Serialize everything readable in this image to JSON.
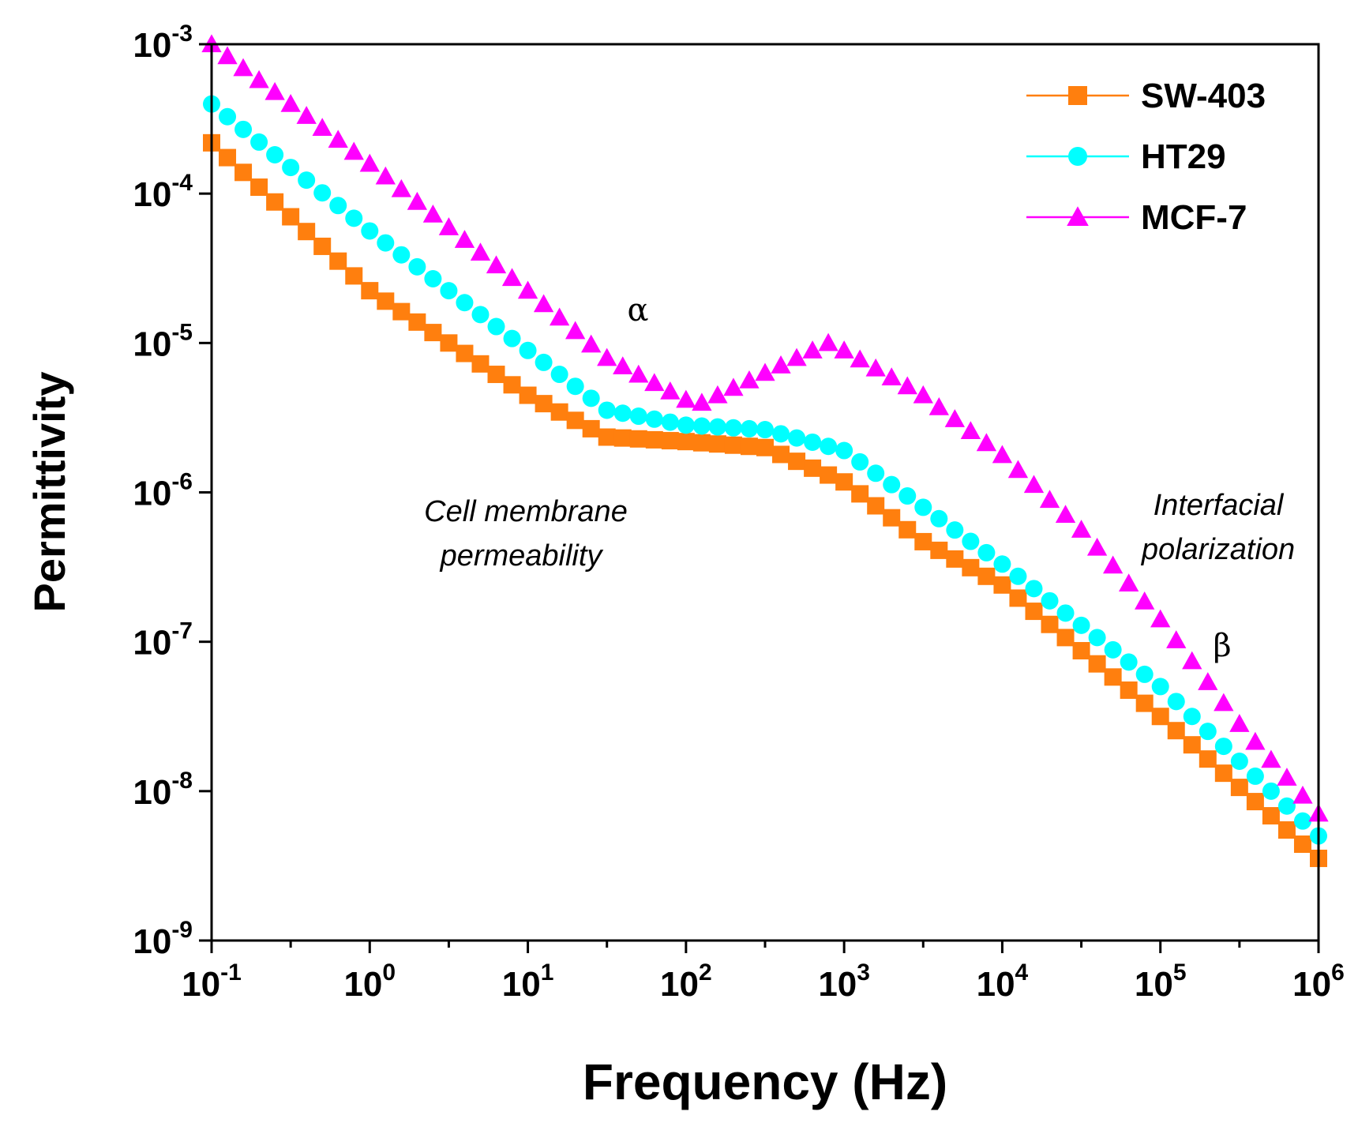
{
  "chart_data": {
    "type": "scatter",
    "title": "",
    "xlabel": "Frequency (Hz)",
    "ylabel": "Permittivity",
    "xscale": "log",
    "yscale": "log",
    "xlim": [
      0.1,
      1000000
    ],
    "ylim": [
      1e-09,
      0.001
    ],
    "x_ticks": [
      {
        "base": "10",
        "exp": "-1"
      },
      {
        "base": "10",
        "exp": "0"
      },
      {
        "base": "10",
        "exp": "1"
      },
      {
        "base": "10",
        "exp": "2"
      },
      {
        "base": "10",
        "exp": "3"
      },
      {
        "base": "10",
        "exp": "4"
      },
      {
        "base": "10",
        "exp": "5"
      },
      {
        "base": "10",
        "exp": "6"
      }
    ],
    "y_ticks": [
      {
        "base": "10",
        "exp": "-9"
      },
      {
        "base": "10",
        "exp": "-8"
      },
      {
        "base": "10",
        "exp": "-7"
      },
      {
        "base": "10",
        "exp": "-6"
      },
      {
        "base": "10",
        "exp": "-5"
      },
      {
        "base": "10",
        "exp": "-4"
      },
      {
        "base": "10",
        "exp": "-3"
      }
    ],
    "legend_position": "top-right",
    "grid": false,
    "series": [
      {
        "name": "SW-403",
        "color": "#FF7F0E",
        "marker": "square",
        "log_x": [
          -1,
          0,
          1,
          1.5,
          2,
          2.5,
          3,
          3.5,
          4,
          5,
          6
        ],
        "log_y": [
          -3.66,
          -4.65,
          -5.35,
          -5.63,
          -5.66,
          -5.7,
          -5.93,
          -6.33,
          -6.62,
          -7.5,
          -8.45
        ]
      },
      {
        "name": "HT29",
        "color": "#00FFFF",
        "marker": "circle",
        "log_x": [
          -1,
          0,
          1,
          1.5,
          2,
          2.5,
          3,
          3.5,
          4,
          5,
          6
        ],
        "log_y": [
          -3.4,
          -4.25,
          -5.05,
          -5.45,
          -5.55,
          -5.58,
          -5.72,
          -6.1,
          -6.48,
          -7.3,
          -8.3
        ]
      },
      {
        "name": "MCF-7",
        "color": "#FF00FF",
        "marker": "triangle",
        "log_x": [
          -1,
          0,
          1,
          1.5,
          2,
          2.1,
          2.5,
          2.9,
          3,
          3.5,
          4,
          4.5,
          5,
          5.5,
          6
        ],
        "log_y": [
          -3.0,
          -3.8,
          -4.65,
          -5.1,
          -5.38,
          -5.4,
          -5.2,
          -5.0,
          -5.05,
          -5.35,
          -5.75,
          -6.25,
          -6.85,
          -7.55,
          -8.15
        ]
      }
    ],
    "annotations": [
      {
        "id": "alpha",
        "text": "α"
      },
      {
        "id": "beta",
        "text": "β"
      },
      {
        "id": "cell-1",
        "text": "Cell membrane"
      },
      {
        "id": "cell-2",
        "text": "permeability"
      },
      {
        "id": "inter-1",
        "text": "Interfacial"
      },
      {
        "id": "inter-2",
        "text": "polarization"
      }
    ]
  }
}
